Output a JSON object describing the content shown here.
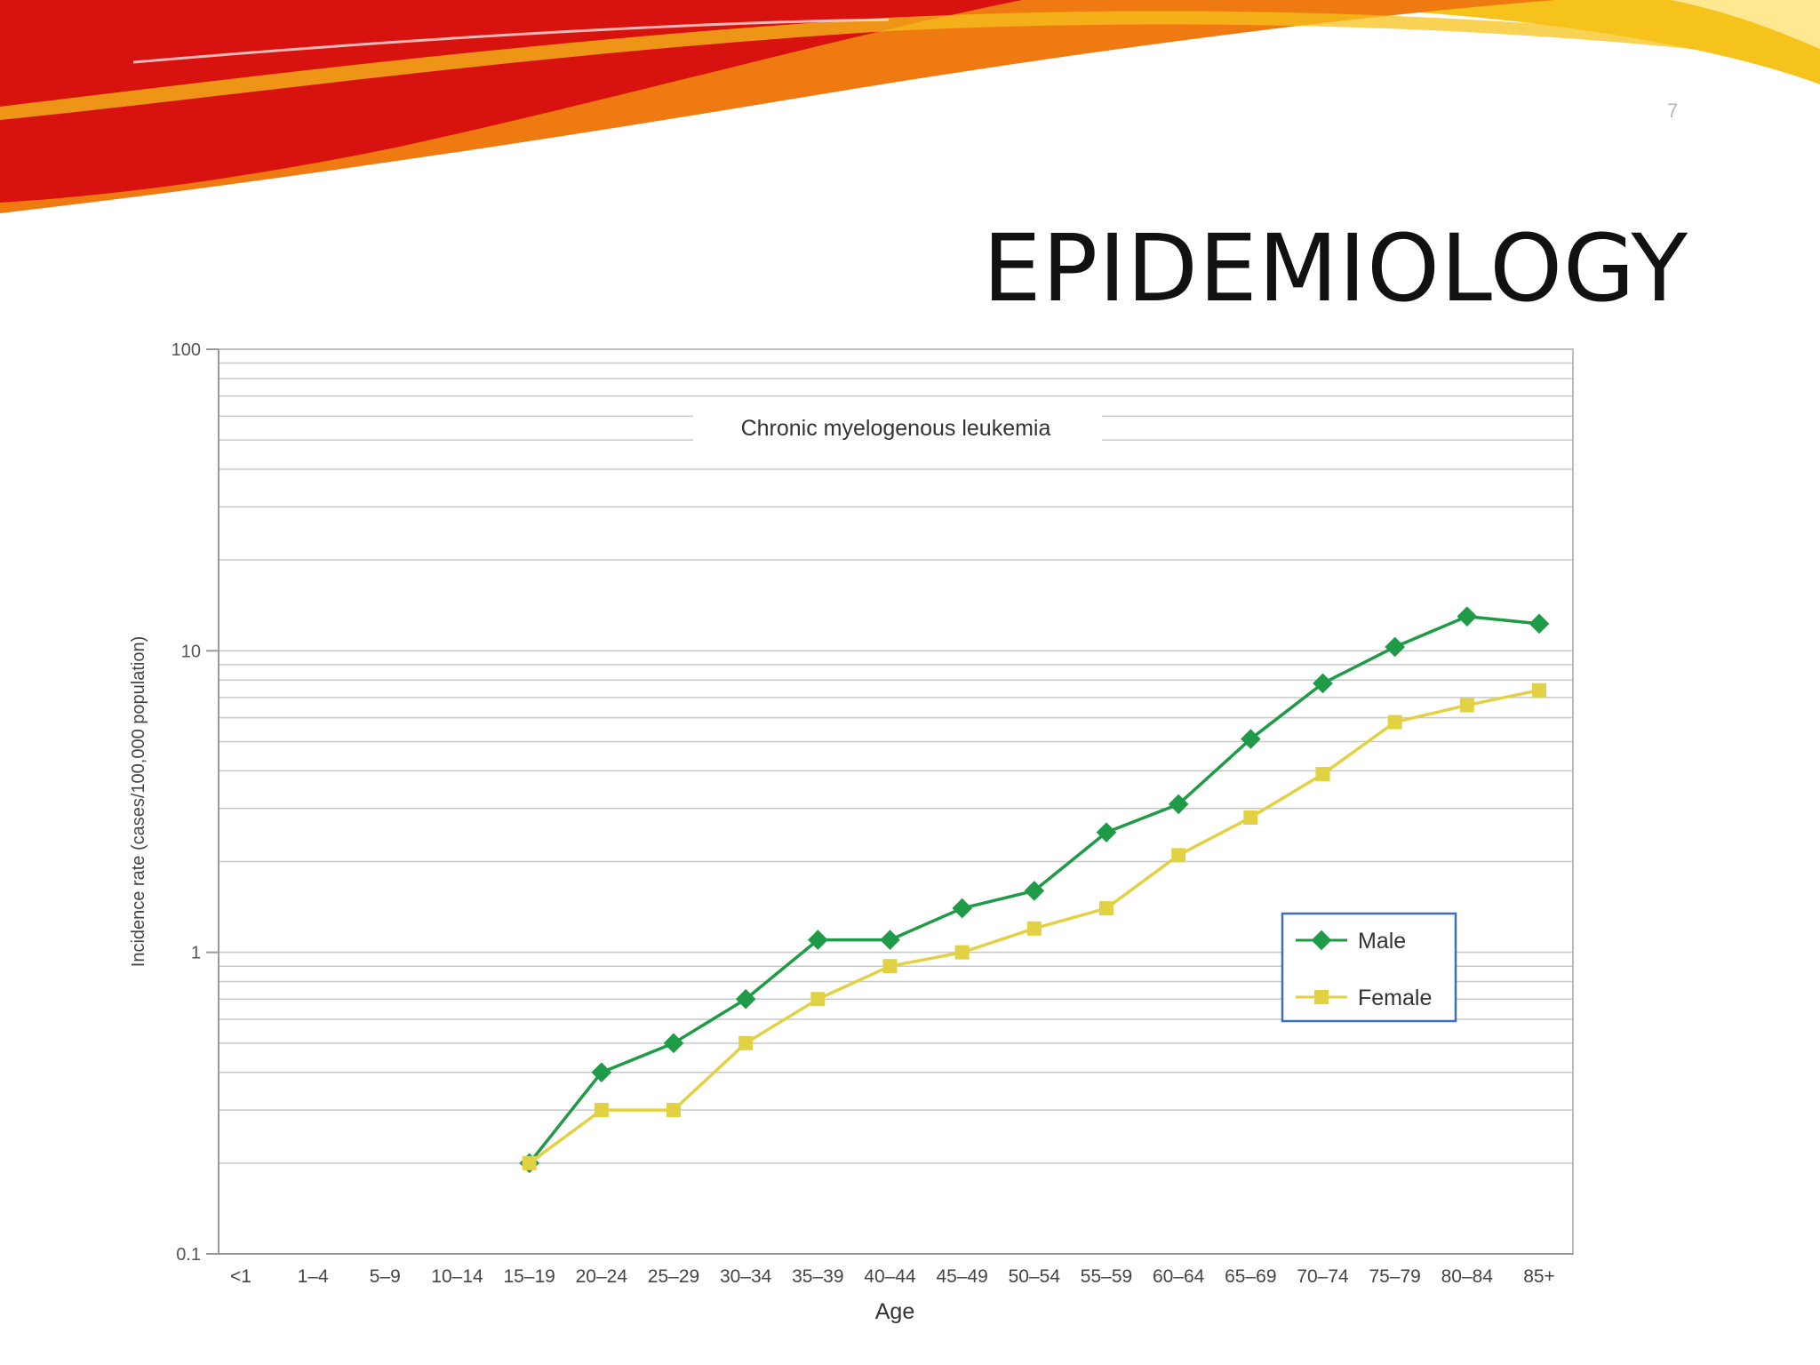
{
  "slide": {
    "title": "EPIDEMIOLOGY",
    "page_number": "7"
  },
  "colors": {
    "male": "#1f9a47",
    "female": "#e2d243",
    "gridline": "#c8c8c8",
    "legend_border": "#3b6fb6",
    "swoosh_red": "#d8120e",
    "swoosh_orange": "#f07a12",
    "swoosh_yellow": "#f6c21c"
  },
  "chart_data": {
    "type": "line",
    "title": "Chronic myelogenous leukemia",
    "xlabel": "Age",
    "ylabel": "Incidence rate (cases/100,000 population)",
    "yscale": "log",
    "ylim": [
      0.1,
      100
    ],
    "yticks": [
      "0.1",
      "1",
      "10",
      "100"
    ],
    "grid": true,
    "legend_position": "right",
    "categories": [
      "<1",
      "1–4",
      "5–9",
      "10–14",
      "15–19",
      "20–24",
      "25–29",
      "30–34",
      "35–39",
      "40–44",
      "45–49",
      "50–54",
      "55–59",
      "60–64",
      "65–69",
      "70–74",
      "75–79",
      "80–84",
      "85+"
    ],
    "series": [
      {
        "name": "Male",
        "marker": "diamond",
        "color": "#1f9a47",
        "values": [
          null,
          null,
          null,
          null,
          0.2,
          0.4,
          0.5,
          0.7,
          1.1,
          1.1,
          1.4,
          1.6,
          2.5,
          3.1,
          5.1,
          7.8,
          10.3,
          13.0,
          12.3
        ]
      },
      {
        "name": "Female",
        "marker": "square",
        "color": "#e2d243",
        "values": [
          null,
          null,
          null,
          null,
          0.2,
          0.3,
          0.3,
          0.5,
          0.7,
          0.9,
          1.0,
          1.2,
          1.4,
          2.1,
          2.8,
          3.9,
          5.8,
          6.6,
          7.4
        ]
      }
    ]
  }
}
